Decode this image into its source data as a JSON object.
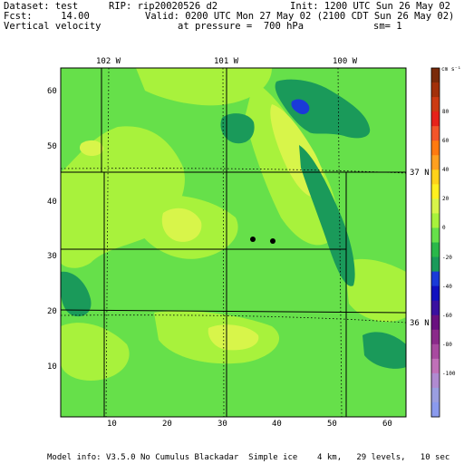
{
  "header": {
    "dataset": "Dataset: test",
    "rip": "RIP: rip20020526 d2",
    "init": "Init: 1200 UTC Sun 26 May 02",
    "fcst": "Fcst:     14.00",
    "valid": "Valid: 0200 UTC Mon 27 May 02 (2100 CDT Sun 26 May 02)",
    "field": "Vertical velocity",
    "pressure": "at pressure =  700 hPa",
    "smoothing": "sm= 1"
  },
  "map": {
    "x_ticks": [
      "10",
      "20",
      "30",
      "40",
      "50",
      "60"
    ],
    "y_ticks": [
      "10",
      "20",
      "30",
      "40",
      "50",
      "60"
    ],
    "lon_labels": [
      "102 W",
      "101 W",
      "100 W"
    ],
    "lat_labels": [
      "37 N",
      "36 N"
    ],
    "colors": {
      "frame": "#000000",
      "bg_green": "#66e04a",
      "light_green": "#a8f23c",
      "yellow_green": "#d8f54a",
      "teal": "#1a9a5a",
      "dark_blue": "#1a3ad8"
    }
  },
  "colorbar": {
    "unit": "cm s⁻¹",
    "labels": [
      "80",
      "60",
      "40",
      "20",
      "0",
      "-20",
      "-40",
      "-60",
      "-80",
      "-100"
    ],
    "colors": [
      "#7a2a0a",
      "#a2300a",
      "#cc3a12",
      "#e6221a",
      "#f2552a",
      "#ff7a10",
      "#ffa020",
      "#ffd21a",
      "#fff020",
      "#d8f54a",
      "#a8f23c",
      "#66e04a",
      "#2ab84a",
      "#1a9a5a",
      "#1a3ad8",
      "#1010c0",
      "#3a10a0",
      "#6a1080",
      "#8a2a8a",
      "#a84aa0",
      "#c070b8",
      "#b08ad0",
      "#9a9ee0",
      "#8a9aee"
    ]
  },
  "footer": {
    "model_info": "Model info: V3.5.0 No Cumulus Blackadar  Simple ice    4 km,   29 levels,   10 sec"
  }
}
